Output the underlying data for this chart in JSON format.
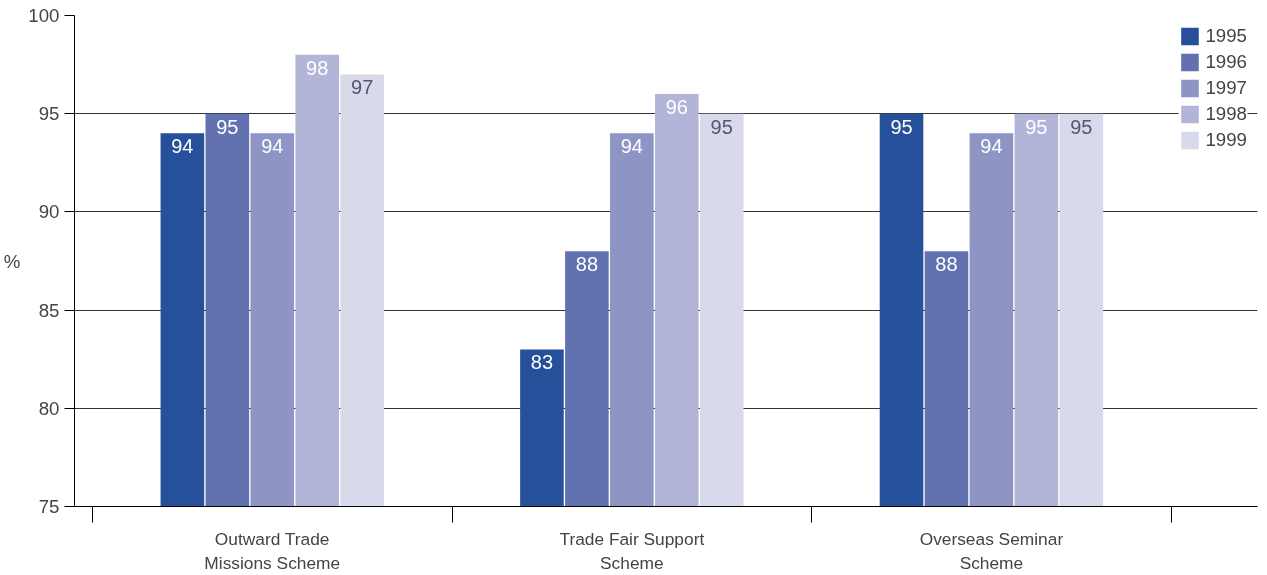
{
  "chart_data": {
    "type": "bar",
    "ylabel": "%",
    "categories": [
      "Outward Trade\nMissions Scheme",
      "Trade Fair Support\nScheme",
      "Overseas Seminar\nScheme"
    ],
    "series": [
      {
        "name": "1995",
        "color": "#26509a",
        "values": [
          94,
          83,
          95
        ]
      },
      {
        "name": "1996",
        "color": "#6272b0",
        "values": [
          95,
          88,
          88
        ]
      },
      {
        "name": "1997",
        "color": "#8e94c4",
        "values": [
          94,
          94,
          94
        ]
      },
      {
        "name": "1998",
        "color": "#b3b5d8",
        "values": [
          98,
          96,
          95
        ]
      },
      {
        "name": "1999",
        "color": "#d9d9ec",
        "values": [
          97,
          95,
          95
        ]
      }
    ],
    "ylim": [
      75,
      100
    ],
    "yticks": [
      75,
      80,
      85,
      90,
      95,
      100
    ],
    "grid": "y",
    "legend": "top right",
    "data_labels": true
  }
}
